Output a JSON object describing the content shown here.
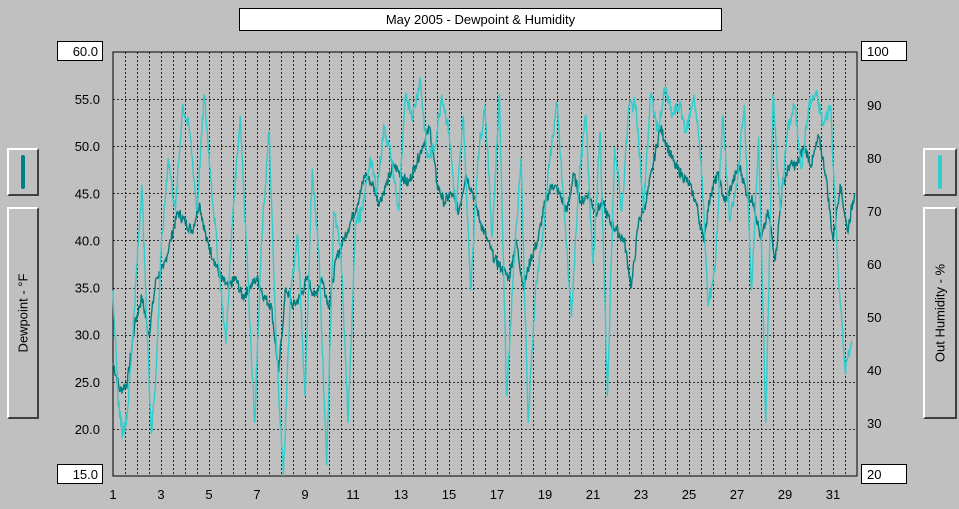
{
  "chart_data": {
    "type": "line",
    "title": "May 2005 - Dewpoint & Humidity",
    "ylabel": "Dewpoint - °F",
    "y2label": "Out Humidity - %",
    "ylim": [
      15,
      60
    ],
    "y2lim": [
      20,
      100
    ],
    "x_ticks": [
      1,
      3,
      5,
      7,
      9,
      11,
      13,
      15,
      17,
      19,
      21,
      23,
      25,
      27,
      29,
      31
    ],
    "y_ticks": [
      "60.0",
      "55.0",
      "50.0",
      "45.0",
      "40.0",
      "35.0",
      "30.0",
      "25.0",
      "20.0",
      "15.0"
    ],
    "y2_ticks": [
      "100",
      "90",
      "80",
      "70",
      "60",
      "50",
      "40",
      "30",
      "20"
    ],
    "xlim": [
      1,
      32
    ],
    "grid": true,
    "series": [
      {
        "name": "Dewpoint",
        "axis": "left",
        "color": "#008080",
        "x": [
          1,
          1.3,
          1.6,
          1.9,
          2.2,
          2.5,
          2.8,
          3.1,
          3.4,
          3.7,
          4,
          4.3,
          4.6,
          4.9,
          5.2,
          5.5,
          5.8,
          6.1,
          6.4,
          6.7,
          7,
          7.3,
          7.6,
          7.9,
          8.2,
          8.5,
          8.8,
          9.1,
          9.4,
          9.7,
          10,
          10.3,
          10.6,
          10.9,
          11.2,
          11.5,
          11.8,
          12.1,
          12.4,
          12.7,
          13,
          13.3,
          13.6,
          13.9,
          14.2,
          14.5,
          14.8,
          15.1,
          15.4,
          15.7,
          16,
          16.3,
          16.6,
          16.9,
          17.2,
          17.5,
          17.8,
          18.1,
          18.4,
          18.7,
          19,
          19.3,
          19.6,
          19.9,
          20.2,
          20.5,
          20.8,
          21.1,
          21.4,
          21.7,
          22,
          22.3,
          22.6,
          22.9,
          23.2,
          23.5,
          23.8,
          24.1,
          24.4,
          24.7,
          25,
          25.3,
          25.6,
          25.9,
          26.2,
          26.5,
          26.8,
          27.1,
          27.4,
          27.7,
          28,
          28.3,
          28.6,
          28.9,
          29.2,
          29.5,
          29.8,
          30.1,
          30.4,
          30.7,
          31,
          31.3,
          31.6,
          31.9
        ],
        "values": [
          27,
          24,
          25,
          31,
          34,
          30,
          36,
          37,
          40,
          43,
          42,
          41,
          44,
          40,
          38,
          36,
          35,
          36,
          34,
          35,
          36,
          34,
          33,
          26,
          35,
          33,
          34,
          36,
          34,
          36,
          33,
          38,
          40,
          42,
          44,
          47,
          46,
          44,
          46,
          48,
          47,
          46,
          48,
          50,
          52,
          46,
          44,
          45,
          43,
          47,
          45,
          42,
          40,
          38,
          37,
          36,
          40,
          35,
          38,
          40,
          44,
          46,
          45,
          43,
          47,
          44,
          45,
          43,
          44,
          42,
          41,
          40,
          35,
          42,
          44,
          48,
          52,
          50,
          48,
          47,
          46,
          44,
          40,
          45,
          47,
          44,
          46,
          48,
          45,
          44,
          40,
          43,
          38,
          46,
          48,
          48,
          50,
          48,
          51,
          47,
          40,
          46,
          41,
          45
        ]
      },
      {
        "name": "Out Humidity",
        "axis": "right",
        "color": "#33cccc",
        "x": [
          1,
          1.2,
          1.4,
          1.6,
          1.8,
          2,
          2.2,
          2.4,
          2.6,
          2.8,
          3,
          3.3,
          3.6,
          3.9,
          4.2,
          4.5,
          4.8,
          5.1,
          5.4,
          5.7,
          6,
          6.3,
          6.6,
          6.9,
          7.2,
          7.5,
          7.8,
          8.1,
          8.4,
          8.7,
          9,
          9.3,
          9.6,
          9.9,
          10.2,
          10.5,
          10.8,
          11.1,
          11.4,
          11.7,
          12,
          12.3,
          12.6,
          12.9,
          13.2,
          13.5,
          13.8,
          14.1,
          14.4,
          14.7,
          15,
          15.3,
          15.6,
          15.9,
          16.2,
          16.5,
          16.8,
          17.1,
          17.4,
          17.7,
          18,
          18.3,
          18.6,
          18.9,
          19.2,
          19.5,
          19.8,
          20.1,
          20.4,
          20.7,
          21,
          21.3,
          21.6,
          21.9,
          22.2,
          22.5,
          22.8,
          23.1,
          23.4,
          23.7,
          24,
          24.3,
          24.6,
          24.9,
          25.2,
          25.5,
          25.8,
          26.1,
          26.4,
          26.7,
          27,
          27.3,
          27.6,
          27.9,
          28.2,
          28.5,
          28.8,
          29.1,
          29.4,
          29.7,
          30,
          30.3,
          30.6,
          30.9,
          31.2,
          31.5,
          31.8
        ],
        "values": [
          55,
          35,
          28,
          32,
          45,
          60,
          75,
          50,
          28,
          40,
          62,
          80,
          70,
          90,
          85,
          70,
          92,
          75,
          60,
          45,
          70,
          88,
          60,
          30,
          65,
          85,
          45,
          20,
          55,
          65,
          35,
          78,
          60,
          22,
          70,
          62,
          30,
          68,
          70,
          80,
          74,
          86,
          80,
          70,
          92,
          88,
          95,
          80,
          82,
          92,
          85,
          70,
          88,
          55,
          80,
          90,
          65,
          92,
          35,
          60,
          80,
          30,
          55,
          65,
          80,
          90,
          70,
          50,
          75,
          88,
          60,
          85,
          35,
          82,
          70,
          90,
          90,
          70,
          92,
          85,
          93,
          88,
          90,
          85,
          92,
          80,
          52,
          60,
          88,
          68,
          75,
          90,
          55,
          84,
          30,
          92,
          70,
          85,
          90,
          78,
          90,
          92,
          86,
          90,
          60,
          40,
          45
        ]
      }
    ]
  }
}
